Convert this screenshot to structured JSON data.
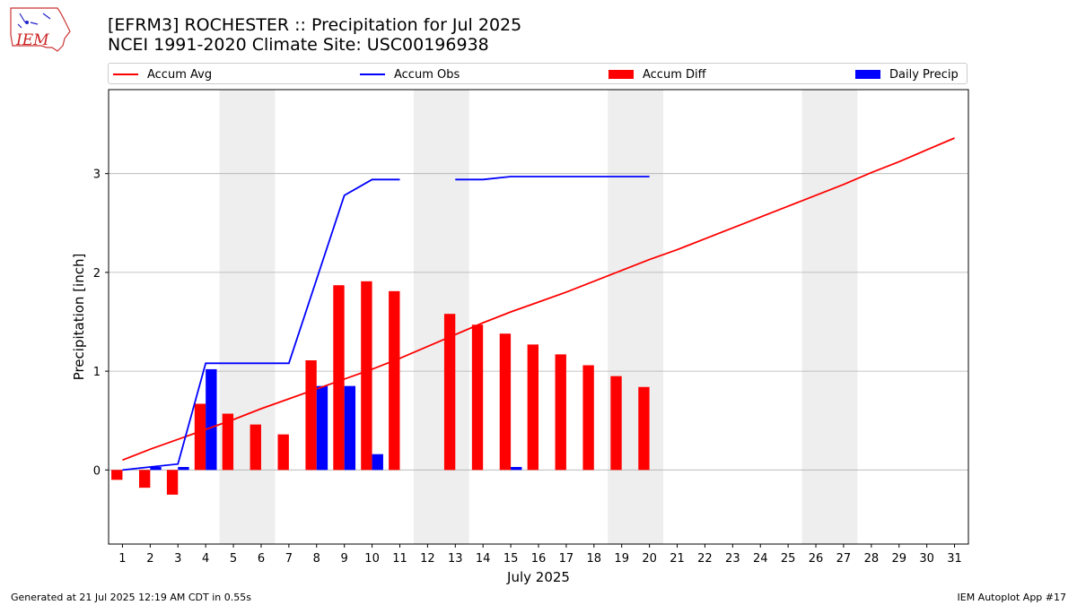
{
  "header": {
    "logo_text": "IEM",
    "title_line1": "[EFRM3] ROCHESTER :: Precipitation for Jul 2025",
    "title_line2": "NCEI 1991-2020 Climate Site: USC00196938"
  },
  "legend": {
    "placement": "top",
    "items": [
      {
        "label": "Accum Avg",
        "kind": "line",
        "color": "#ff0000"
      },
      {
        "label": "Accum Obs",
        "kind": "line",
        "color": "#0000ff"
      },
      {
        "label": "Accum Diff",
        "kind": "bar",
        "color": "#ff0000"
      },
      {
        "label": "Daily Precip",
        "kind": "bar",
        "color": "#0000ff"
      }
    ]
  },
  "footer": {
    "left": "Generated at 21 Jul 2025 12:19 AM CDT in 0.55s",
    "right": "IEM Autoplot App #17"
  },
  "chart_data": {
    "type": "bar",
    "xlabel": "July 2025",
    "ylabel": "Precipitation [inch]",
    "ylim": [
      -0.75,
      3.85
    ],
    "xlim": [
      0.5,
      31.5
    ],
    "yticks": [
      0,
      1,
      2,
      3
    ],
    "xticks": [
      "1",
      "2",
      "3",
      "4",
      "5",
      "6",
      "7",
      "8",
      "9",
      "10",
      "11",
      "12",
      "13",
      "14",
      "15",
      "16",
      "17",
      "18",
      "19",
      "20",
      "21",
      "22",
      "23",
      "24",
      "25",
      "26",
      "27",
      "28",
      "29",
      "30",
      "31"
    ],
    "grid": "horizontal",
    "weekend_shading": [
      [
        5,
        6
      ],
      [
        12,
        13
      ],
      [
        19,
        20
      ],
      [
        26,
        27
      ]
    ],
    "colors": {
      "avg": "#ff0000",
      "obs": "#0000ff",
      "diff": "#ff0000",
      "daily": "#0000ff",
      "shade": "#eeeeee",
      "grid": "#b0b0b0"
    },
    "series": [
      {
        "name": "Accum Avg",
        "kind": "line",
        "x": [
          1,
          2,
          3,
          4,
          5,
          6,
          7,
          8,
          9,
          10,
          11,
          12,
          13,
          14,
          15,
          16,
          17,
          18,
          19,
          20,
          21,
          22,
          23,
          24,
          25,
          26,
          27,
          28,
          29,
          30,
          31
        ],
        "values": [
          0.1,
          0.21,
          0.31,
          0.41,
          0.51,
          0.62,
          0.72,
          0.82,
          0.92,
          1.02,
          1.13,
          1.25,
          1.37,
          1.49,
          1.6,
          1.7,
          1.8,
          1.91,
          2.02,
          2.13,
          2.23,
          2.34,
          2.45,
          2.56,
          2.67,
          2.78,
          2.89,
          3.01,
          3.12,
          3.24,
          3.36
        ]
      },
      {
        "name": "Accum Obs",
        "kind": "line",
        "segments": [
          {
            "x": [
              1,
              2,
              3,
              4,
              5,
              6,
              7,
              8,
              9,
              10,
              11
            ],
            "values": [
              0.0,
              0.03,
              0.06,
              1.08,
              1.08,
              1.08,
              1.08,
              1.93,
              2.78,
              2.94,
              2.94
            ]
          },
          {
            "x": [
              13,
              14,
              15,
              16,
              17,
              18,
              19,
              20
            ],
            "values": [
              2.94,
              2.94,
              2.97,
              2.97,
              2.97,
              2.97,
              2.97,
              2.97
            ]
          }
        ]
      },
      {
        "name": "Accum Diff",
        "kind": "bar",
        "x": [
          1,
          2,
          3,
          4,
          5,
          6,
          7,
          8,
          9,
          10,
          11,
          13,
          14,
          15,
          16,
          17,
          18,
          19,
          20
        ],
        "values": [
          -0.1,
          -0.18,
          -0.25,
          0.67,
          0.57,
          0.46,
          0.36,
          1.11,
          1.87,
          1.91,
          1.81,
          1.58,
          1.47,
          1.38,
          1.27,
          1.17,
          1.06,
          0.95,
          0.84
        ]
      },
      {
        "name": "Daily Precip",
        "kind": "bar",
        "x": [
          1,
          2,
          3,
          4,
          5,
          6,
          7,
          8,
          9,
          10,
          11,
          13,
          14,
          15,
          16,
          17,
          18,
          19,
          20
        ],
        "values": [
          0.0,
          0.03,
          0.03,
          1.02,
          0.0,
          0.0,
          0.0,
          0.85,
          0.85,
          0.16,
          0.0,
          0.0,
          0.0,
          0.03,
          0.0,
          0.0,
          0.0,
          0.0,
          0.0
        ]
      }
    ]
  }
}
